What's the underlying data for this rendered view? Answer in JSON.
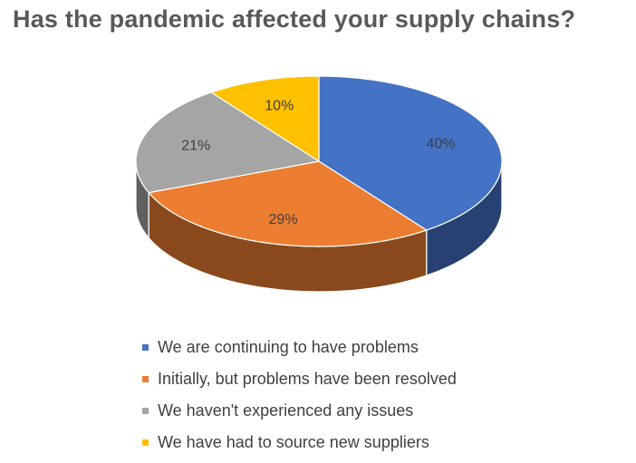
{
  "chart_data": {
    "type": "pie",
    "title": "Has the pandemic affected your supply chains?",
    "categories": [
      "We are continuing to have problems",
      "Initially, but problems have been resolved",
      "We haven't experienced any issues",
      "We have had to source new suppliers"
    ],
    "values": [
      40,
      29,
      21,
      10
    ],
    "labels": [
      "40%",
      "29%",
      "21%",
      "10%"
    ],
    "colors": [
      "#4472C4",
      "#ED7D31",
      "#A5A5A5",
      "#FFC000"
    ],
    "legend_position": "bottom",
    "style": "3d"
  }
}
